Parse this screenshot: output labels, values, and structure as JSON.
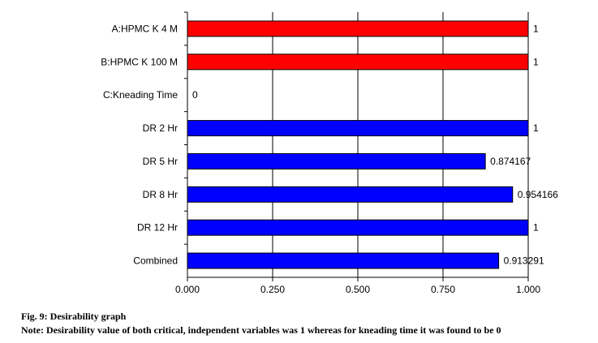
{
  "chart_data": {
    "type": "bar",
    "orientation": "horizontal",
    "categories": [
      "A:HPMC K 4 M",
      "B:HPMC K 100 M",
      "C:Kneading Time",
      "DR 2 Hr",
      "DR 5 Hr",
      "DR 8 Hr",
      "DR 12 Hr",
      "Combined"
    ],
    "values": [
      1,
      1,
      0,
      1,
      0.874167,
      0.954166,
      1,
      0.913291
    ],
    "value_labels": [
      "1",
      "1",
      "0",
      "1",
      "0.874167",
      "0.954166",
      "1",
      "0.913291"
    ],
    "bar_colors": [
      "#ff0000",
      "#ff0000",
      "#ff0000",
      "#0000ff",
      "#0000ff",
      "#0000ff",
      "#0000ff",
      "#0000ff"
    ],
    "xlim": [
      0,
      1
    ],
    "xticks": [
      0,
      0.25,
      0.5,
      0.75,
      1
    ],
    "xtick_labels": [
      "0.000",
      "0.250",
      "0.500",
      "0.750",
      "1.000"
    ],
    "grid": true,
    "title": "",
    "xlabel": "",
    "ylabel": ""
  },
  "caption": {
    "title": "Fig. 9: Desirability graph",
    "note": "Note: Desirability value of both critical, independent variables was 1 whereas for kneading time it was found to be 0"
  }
}
